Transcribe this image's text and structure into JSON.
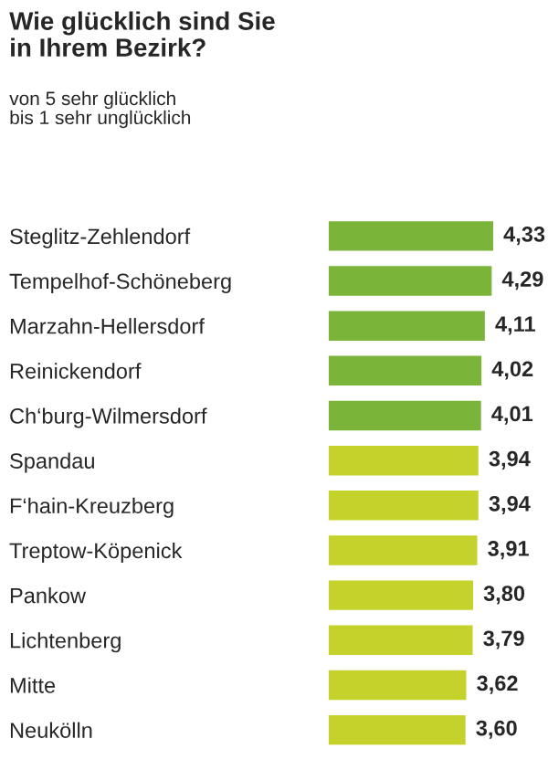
{
  "chart_data": {
    "type": "bar",
    "orientation": "horizontal",
    "title": "Wie glücklich sind Sie\nin Ihrem Bezirk?",
    "subtitle": "von 5 sehr glücklich\nbis 1 sehr unglücklich",
    "categories": [
      "Steglitz-Zehlendorf",
      "Tempelhof-Schöneberg",
      "Marzahn-Hellersdorf",
      "Reinickendorf",
      "Ch‘burg-Wilmersdorf",
      "Spandau",
      "F‘hain-Kreuzberg",
      "Treptow-Köpenick",
      "Pankow",
      "Lichtenberg",
      "Mitte",
      "Neukölln"
    ],
    "values": [
      4.33,
      4.29,
      4.11,
      4.02,
      4.01,
      3.94,
      3.94,
      3.91,
      3.8,
      3.79,
      3.62,
      3.6
    ],
    "colors": [
      "#7ab53a",
      "#7ab53a",
      "#7ab53a",
      "#7ab53a",
      "#7ab53a",
      "#c5d22b",
      "#c5d22b",
      "#c5d22b",
      "#c5d22b",
      "#c5d22b",
      "#c5d22b",
      "#c5d22b"
    ],
    "value_labels": [
      "4,33",
      "4,29",
      "4,11",
      "4,02",
      "4,01",
      "3,94",
      "3,94",
      "3,91",
      "3,80",
      "3,79",
      "3,62",
      "3,60"
    ],
    "tick_labels": "y"
  }
}
